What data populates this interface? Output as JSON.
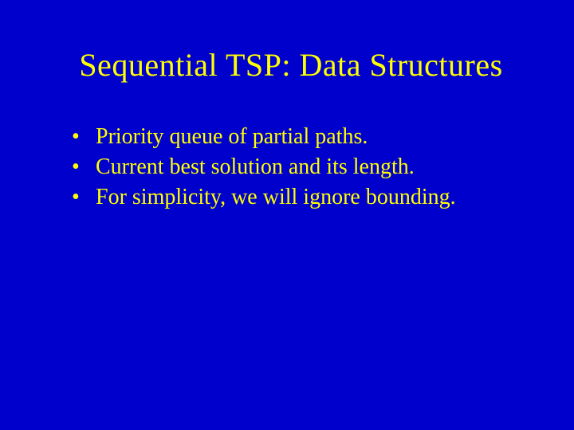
{
  "slide": {
    "background_color": "#0000cc",
    "text_color": "#ffff00",
    "title": "Sequential TSP: Data Structures",
    "title_fontsize": 40,
    "bullet_fontsize": 28,
    "font_family": "Times New Roman",
    "bullets": [
      "Priority queue of partial paths.",
      "Current best solution and its length.",
      "For simplicity, we will ignore bounding."
    ]
  }
}
